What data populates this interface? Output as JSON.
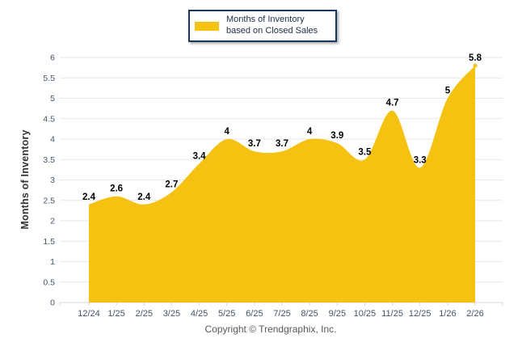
{
  "legend": {
    "label": "Months of Inventory based on Closed Sales"
  },
  "footer": {
    "copyright": "Copyright © Trendgraphix, Inc."
  },
  "colors": {
    "area_fill": "#F5C211",
    "gridline": "#E7E7E7",
    "axis_line": "#D9D9D9",
    "tick_label": "#44546A",
    "data_label": "#000000",
    "axis_title": "#333333",
    "legend_border": "#17375E",
    "legend_text": "#203149",
    "copyright_text": "#595959"
  },
  "chart_data": {
    "type": "area",
    "title": "",
    "categories": [
      "12/24",
      "1/25",
      "2/25",
      "3/25",
      "4/25",
      "5/25",
      "6/25",
      "7/25",
      "8/25",
      "9/25",
      "10/25",
      "11/25",
      "12/25",
      "1/26",
      "2/26"
    ],
    "values": [
      2.4,
      2.6,
      2.4,
      2.7,
      3.4,
      4,
      3.7,
      3.7,
      4,
      3.9,
      3.5,
      4.7,
      3.3,
      5,
      5.8
    ],
    "series_name": "Months of Inventory based on Closed Sales",
    "xlabel": "",
    "ylabel": "Months of Inventory",
    "ylim": [
      0,
      6
    ],
    "ytick_step": 0.5,
    "grid": true,
    "smooth": true,
    "data_labels": true,
    "legend_position": "top-center"
  }
}
